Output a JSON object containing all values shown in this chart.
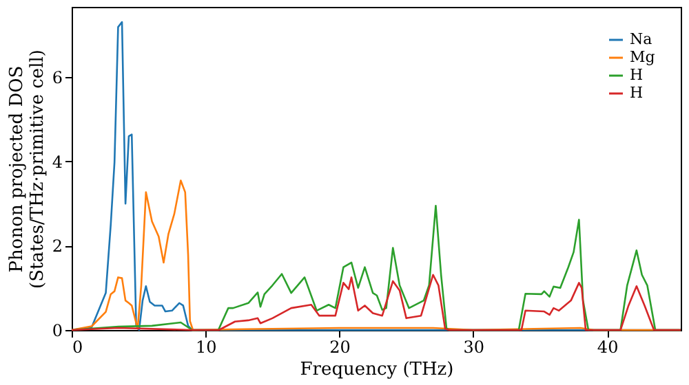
{
  "chart_data": {
    "type": "line",
    "xlabel": "Frequency (THz)",
    "ylabel": "Phonon projected DOS\n(States/THz·primitive cell)",
    "xlim": [
      0,
      45.5
    ],
    "ylim": [
      0,
      7.67
    ],
    "xticks": [
      0,
      10,
      20,
      30,
      40
    ],
    "yticks": [
      0,
      2,
      4,
      6
    ],
    "grid": false,
    "legend": "top right",
    "line_style": "solid",
    "marker": "none",
    "series": [
      {
        "name": "Na",
        "color": "#1f77b4",
        "x": [
          0,
          1.5,
          2.55,
          2.92,
          3.2,
          3.47,
          3.76,
          4.02,
          4.27,
          4.49,
          4.82,
          5.04,
          5.3,
          5.55,
          5.84,
          6.2,
          6.76,
          7.0,
          7.5,
          8.04,
          8.33,
          8.7,
          9.0,
          45.5
        ],
        "values": [
          0,
          0.07,
          0.88,
          2.5,
          3.98,
          7.19,
          7.31,
          3.0,
          4.6,
          4.64,
          0.1,
          0,
          0.7,
          1.04,
          0.67,
          0.58,
          0.58,
          0.44,
          0.46,
          0.64,
          0.58,
          0.1,
          0,
          0
        ]
      },
      {
        "name": "Mg",
        "color": "#ff7f0e",
        "x": [
          0,
          1.5,
          2.55,
          2.92,
          3.2,
          3.47,
          3.76,
          4.02,
          4.27,
          4.49,
          4.93,
          5.2,
          5.55,
          6.0,
          6.5,
          6.87,
          7.23,
          7.67,
          8.15,
          8.48,
          8.7,
          8.84,
          9.06,
          13,
          20,
          27,
          30,
          38,
          39,
          45.5
        ],
        "values": [
          0,
          0.09,
          0.43,
          0.85,
          0.92,
          1.25,
          1.23,
          0.7,
          0.64,
          0.58,
          0.03,
          1.06,
          3.27,
          2.58,
          2.22,
          1.6,
          2.28,
          2.76,
          3.55,
          3.27,
          1.79,
          0.21,
          0,
          0.02,
          0.05,
          0.05,
          0,
          0.05,
          0,
          0
        ]
      },
      {
        "name": "H",
        "color": "#2ca02c",
        "x": [
          0,
          3.5,
          6,
          8.15,
          9.0,
          10.96,
          11.7,
          12.06,
          13.2,
          13.9,
          14.1,
          14.4,
          15.0,
          15.7,
          16.4,
          17.4,
          18.3,
          19.2,
          19.7,
          20.3,
          20.9,
          21.4,
          21.9,
          22.5,
          22.8,
          23.2,
          23.5,
          24.0,
          24.5,
          25.2,
          26.3,
          26.7,
          27.2,
          27.6,
          28.0,
          28.2,
          33.4,
          33.9,
          35.1,
          35.3,
          35.7,
          36.0,
          36.5,
          37.1,
          37.5,
          37.9,
          38.2,
          38.6,
          41.0,
          41.5,
          42.2,
          42.6,
          43.0,
          43.6,
          45.5
        ],
        "values": [
          0,
          0.08,
          0.1,
          0.18,
          0,
          0,
          0.52,
          0.52,
          0.64,
          0.89,
          0.55,
          0.85,
          1.06,
          1.33,
          0.88,
          1.25,
          0.46,
          0.6,
          0.52,
          1.49,
          1.6,
          1.0,
          1.49,
          0.88,
          0.82,
          0.48,
          0.52,
          1.95,
          1.06,
          0.52,
          0.7,
          1.06,
          2.95,
          1.3,
          0.04,
          0,
          0,
          0.86,
          0.85,
          0.92,
          0.79,
          1.03,
          1.0,
          1.49,
          1.85,
          2.62,
          0.7,
          0,
          0,
          1.06,
          1.89,
          1.31,
          1.06,
          0,
          0
        ]
      },
      {
        "name": "H",
        "color": "#d62728",
        "x": [
          0,
          3.5,
          9.0,
          11.0,
          12.2,
          13.2,
          13.9,
          14.1,
          15.0,
          16.4,
          17.9,
          18.5,
          19.7,
          20.3,
          20.7,
          20.9,
          21.4,
          21.9,
          22.5,
          23.2,
          24.0,
          24.5,
          25.0,
          26.1,
          27.0,
          27.4,
          27.9,
          28.2,
          33.6,
          33.9,
          35.3,
          35.7,
          36.0,
          36.4,
          37.3,
          37.9,
          38.1,
          38.4,
          41.0,
          41.6,
          42.2,
          42.8,
          43.5,
          45.5
        ],
        "values": [
          0,
          0.05,
          0,
          0,
          0.2,
          0.23,
          0.28,
          0.16,
          0.28,
          0.52,
          0.6,
          0.34,
          0.34,
          1.12,
          0.97,
          1.25,
          0.46,
          0.58,
          0.4,
          0.34,
          1.16,
          0.94,
          0.28,
          0.34,
          1.31,
          1.06,
          0.03,
          0,
          0,
          0.46,
          0.44,
          0.36,
          0.52,
          0.46,
          0.7,
          1.12,
          1.0,
          0,
          0,
          0.58,
          1.04,
          0.58,
          0,
          0
        ]
      }
    ]
  }
}
